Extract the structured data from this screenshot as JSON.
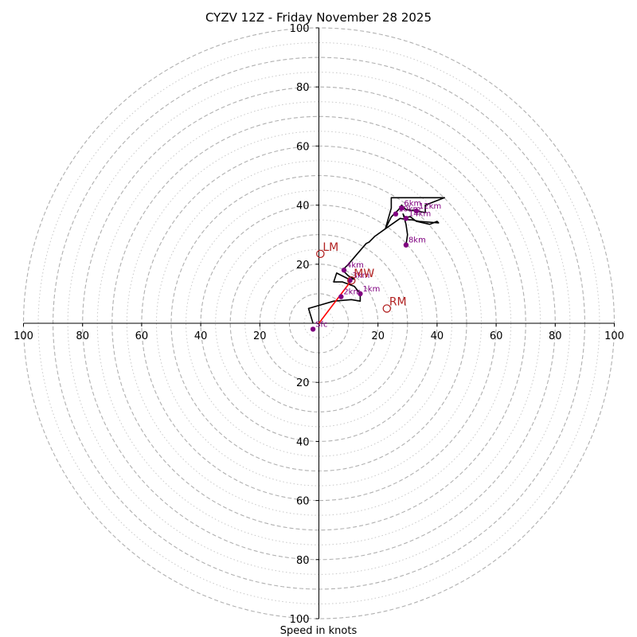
{
  "chart_data": {
    "type": "hodograph",
    "title": "CYZV 12Z - Friday November 28 2025",
    "xlabel": "Speed in knots",
    "units": "knots",
    "max_speed": 100,
    "dashed_ring_speeds": [
      10,
      20,
      30,
      40,
      50,
      60,
      70,
      80,
      90,
      100
    ],
    "dotted_ring_speeds": [
      5,
      15,
      25,
      35,
      45,
      55,
      65,
      75,
      85,
      95
    ],
    "x_tick_labels": [
      "100",
      "80",
      "60",
      "40",
      "20",
      "20",
      "40",
      "60",
      "80",
      "100"
    ],
    "x_tick_values": [
      -100,
      -80,
      -60,
      -40,
      -20,
      20,
      40,
      60,
      80,
      100
    ],
    "y_tick_labels": [
      "100",
      "80",
      "60",
      "40",
      "20",
      "20",
      "40",
      "60",
      "80",
      "100"
    ],
    "y_tick_values": [
      100,
      80,
      60,
      40,
      20,
      -20,
      -40,
      -60,
      -80,
      -100
    ],
    "wind_trace": [
      [
        -2,
        0
      ],
      [
        -3.5,
        5
      ],
      [
        5,
        7.5
      ],
      [
        11,
        8
      ],
      [
        14,
        7.5
      ],
      [
        14,
        10
      ],
      [
        12,
        12.5
      ],
      [
        8,
        14
      ],
      [
        5,
        14
      ],
      [
        6,
        17
      ],
      [
        10,
        15
      ],
      [
        12,
        15
      ],
      [
        10,
        16
      ],
      [
        8,
        18
      ],
      [
        10,
        20
      ],
      [
        13,
        23.5
      ],
      [
        16,
        27
      ],
      [
        17,
        27.5
      ],
      [
        19,
        29.5
      ],
      [
        22.5,
        32
      ],
      [
        24.5,
        36
      ],
      [
        27,
        38.5
      ],
      [
        28,
        40
      ],
      [
        29.5,
        38.5
      ],
      [
        33,
        38
      ],
      [
        36,
        37.5
      ],
      [
        36,
        40
      ],
      [
        42.5,
        42.5
      ],
      [
        24.5,
        42.5
      ],
      [
        24.5,
        39
      ],
      [
        22.5,
        32
      ],
      [
        27.5,
        35.5
      ],
      [
        30.5,
        35
      ],
      [
        31.5,
        35
      ],
      [
        34,
        34.5
      ],
      [
        40.5,
        34
      ],
      [
        40,
        34.5
      ],
      [
        37.5,
        33.5
      ],
      [
        33,
        34.5
      ],
      [
        31,
        36
      ],
      [
        29,
        36
      ],
      [
        28.5,
        37
      ],
      [
        29.5,
        33.5
      ],
      [
        30,
        30
      ],
      [
        29.5,
        26.5
      ]
    ],
    "height_points": [
      {
        "label": "Sfc",
        "u": -2,
        "v": -2
      },
      {
        "label": "1km",
        "u": 14,
        "v": 10
      },
      {
        "label": "2km",
        "u": 7.5,
        "v": 9
      },
      {
        "label": "3km",
        "u": 10.5,
        "v": 14.5
      },
      {
        "label": "4km",
        "u": 8.5,
        "v": 18
      },
      {
        "label": "6km",
        "u": 28,
        "v": 39
      },
      {
        "label": "10km",
        "u": 26,
        "v": 37
      },
      {
        "label": "12km",
        "u": 33,
        "v": 38
      },
      {
        "label": "14km",
        "u": 29.5,
        "v": 35.5
      },
      {
        "label": "8km",
        "u": 29.5,
        "v": 26.5
      }
    ],
    "motion_markers": [
      {
        "label": "LM",
        "u": 0.5,
        "v": 23.5
      },
      {
        "label": "MW",
        "u": 11,
        "v": 14.5
      },
      {
        "label": "RM",
        "u": 23,
        "v": 5
      }
    ],
    "shear_vector": {
      "from": [
        0,
        0
      ],
      "to": [
        11,
        14.5
      ]
    },
    "colors": {
      "trace": "#000000",
      "height_points": "#800080",
      "motion": "#b22222",
      "shear": "#ff0000",
      "grid": "#b0b0b0"
    }
  }
}
